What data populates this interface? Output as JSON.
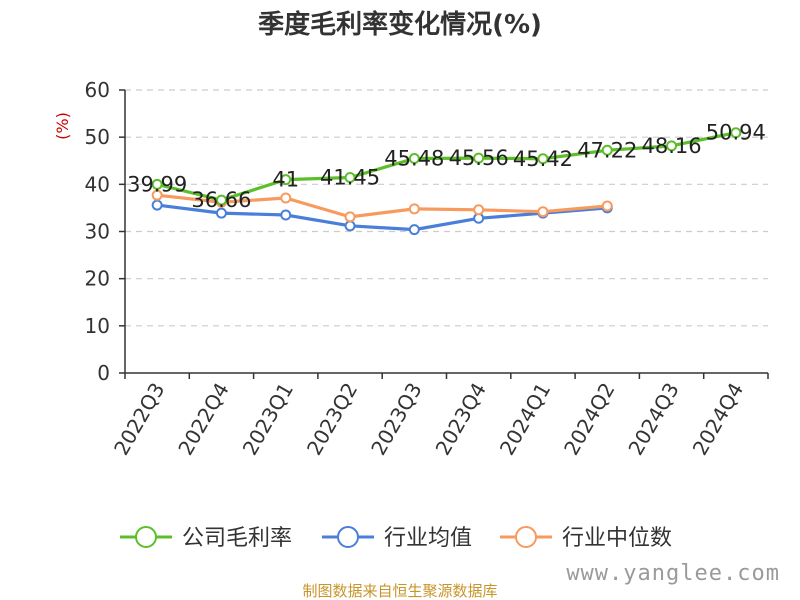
{
  "chart_data": {
    "type": "line",
    "title": "季度毛利率变化情况(%)",
    "ylabel": "(%)",
    "categories": [
      "2022Q3",
      "2022Q4",
      "2023Q1",
      "2023Q2",
      "2023Q3",
      "2023Q4",
      "2024Q1",
      "2024Q2",
      "2024Q3",
      "2024Q4"
    ],
    "yticks": [
      0,
      10,
      20,
      30,
      40,
      50,
      60
    ],
    "ylim": [
      0,
      60
    ],
    "grid": true,
    "legend_position": "bottom",
    "series": [
      {
        "name": "公司毛利率",
        "color": "#5cbf2a",
        "values": [
          39.99,
          36.66,
          41,
          41.45,
          45.48,
          45.56,
          45.42,
          47.22,
          48.16,
          50.94
        ],
        "labels": [
          "39.99",
          "36.66",
          "41",
          "41.45",
          "45.48",
          "45.56",
          "45.42",
          "47.22",
          "48.16",
          "50.94"
        ]
      },
      {
        "name": "行业均值",
        "color": "#4a7fd9",
        "values": [
          35.6,
          33.9,
          33.5,
          31.2,
          30.4,
          32.8,
          33.9,
          35.0,
          null,
          null
        ]
      },
      {
        "name": "行业中位数",
        "color": "#f79a5e",
        "values": [
          37.7,
          36.2,
          37.1,
          33.1,
          34.8,
          34.6,
          34.2,
          35.4,
          null,
          null
        ]
      }
    ]
  },
  "footer": {
    "source": "制图数据来自恒生聚源数据库",
    "watermark": "www.yanglee.com"
  }
}
